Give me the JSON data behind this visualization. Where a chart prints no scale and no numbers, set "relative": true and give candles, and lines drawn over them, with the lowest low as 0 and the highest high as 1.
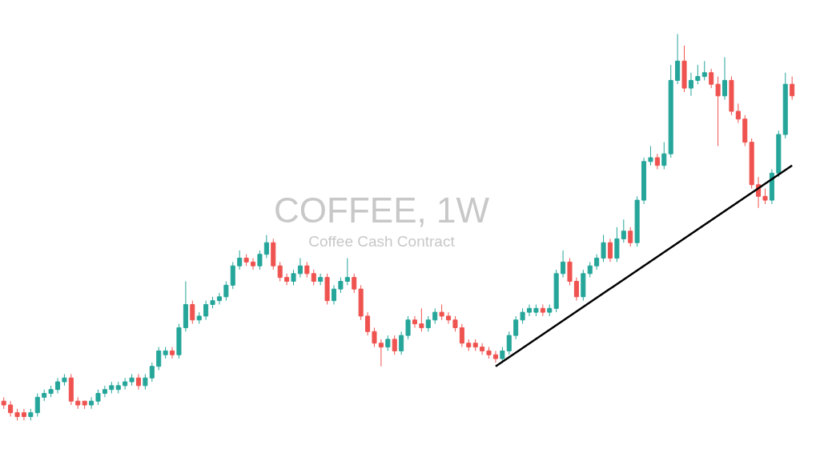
{
  "chart_data": {
    "type": "candlestick",
    "title": "COFFEE, 1W",
    "subtitle": "Coffee Cash Contract",
    "relative": true,
    "categories": [
      null,
      null,
      null,
      null,
      null,
      null,
      null,
      null,
      null,
      null,
      null,
      null,
      null,
      null,
      null,
      null,
      null,
      null,
      null,
      null,
      null,
      null,
      null,
      null,
      null,
      null,
      null,
      null,
      null,
      null,
      null,
      null,
      null,
      null,
      null,
      null,
      null,
      null,
      null,
      null,
      null,
      null,
      null,
      null,
      null,
      null,
      null,
      null,
      null,
      null,
      null,
      null,
      null,
      null,
      null,
      null,
      null,
      null,
      null,
      null,
      null,
      null,
      null,
      null,
      null,
      null,
      null,
      null,
      null,
      null,
      null,
      null,
      null,
      null,
      null,
      null,
      null,
      null,
      null,
      null,
      null,
      null,
      null,
      null,
      null,
      null,
      null,
      null,
      null,
      null,
      null,
      null,
      null,
      null,
      null,
      null,
      null,
      null,
      null,
      null,
      null,
      null,
      null,
      null,
      null,
      null,
      null,
      null,
      null,
      null,
      null,
      null,
      null,
      null,
      null,
      null,
      null,
      null
    ],
    "ohlc": [
      [
        0.05,
        0.06,
        0.03,
        0.04
      ],
      [
        0.04,
        0.05,
        0.01,
        0.02
      ],
      [
        0.02,
        0.03,
        0.0,
        0.01
      ],
      [
        0.02,
        0.03,
        0.0,
        0.01
      ],
      [
        0.01,
        0.03,
        0.0,
        0.02
      ],
      [
        0.02,
        0.07,
        0.01,
        0.06
      ],
      [
        0.06,
        0.08,
        0.05,
        0.07
      ],
      [
        0.07,
        0.09,
        0.06,
        0.08
      ],
      [
        0.08,
        0.11,
        0.07,
        0.1
      ],
      [
        0.1,
        0.12,
        0.09,
        0.11
      ],
      [
        0.11,
        0.12,
        0.04,
        0.05
      ],
      [
        0.05,
        0.06,
        0.03,
        0.04
      ],
      [
        0.05,
        0.05,
        0.03,
        0.04
      ],
      [
        0.04,
        0.06,
        0.03,
        0.05
      ],
      [
        0.05,
        0.08,
        0.04,
        0.07
      ],
      [
        0.07,
        0.09,
        0.06,
        0.08
      ],
      [
        0.08,
        0.1,
        0.07,
        0.09
      ],
      [
        0.08,
        0.1,
        0.07,
        0.09
      ],
      [
        0.09,
        0.11,
        0.08,
        0.1
      ],
      [
        0.1,
        0.12,
        0.09,
        0.11
      ],
      [
        0.11,
        0.12,
        0.08,
        0.09
      ],
      [
        0.09,
        0.12,
        0.08,
        0.11
      ],
      [
        0.11,
        0.15,
        0.1,
        0.14
      ],
      [
        0.14,
        0.19,
        0.13,
        0.18
      ],
      [
        0.17,
        0.19,
        0.16,
        0.18
      ],
      [
        0.18,
        0.19,
        0.16,
        0.17
      ],
      [
        0.17,
        0.25,
        0.16,
        0.24
      ],
      [
        0.24,
        0.36,
        0.23,
        0.3
      ],
      [
        0.3,
        0.31,
        0.25,
        0.26
      ],
      [
        0.26,
        0.28,
        0.25,
        0.27
      ],
      [
        0.27,
        0.31,
        0.26,
        0.3
      ],
      [
        0.3,
        0.32,
        0.29,
        0.31
      ],
      [
        0.31,
        0.33,
        0.3,
        0.32
      ],
      [
        0.32,
        0.36,
        0.31,
        0.35
      ],
      [
        0.35,
        0.41,
        0.34,
        0.4
      ],
      [
        0.4,
        0.44,
        0.39,
        0.42
      ],
      [
        0.42,
        0.43,
        0.4,
        0.41
      ],
      [
        0.41,
        0.42,
        0.39,
        0.4
      ],
      [
        0.4,
        0.44,
        0.39,
        0.43
      ],
      [
        0.43,
        0.48,
        0.42,
        0.46
      ],
      [
        0.46,
        0.47,
        0.39,
        0.4
      ],
      [
        0.4,
        0.41,
        0.36,
        0.37
      ],
      [
        0.37,
        0.38,
        0.35,
        0.36
      ],
      [
        0.36,
        0.39,
        0.35,
        0.38
      ],
      [
        0.38,
        0.42,
        0.37,
        0.4
      ],
      [
        0.4,
        0.41,
        0.37,
        0.38
      ],
      [
        0.38,
        0.39,
        0.35,
        0.36
      ],
      [
        0.36,
        0.38,
        0.35,
        0.37
      ],
      [
        0.37,
        0.38,
        0.3,
        0.31
      ],
      [
        0.31,
        0.35,
        0.3,
        0.34
      ],
      [
        0.34,
        0.37,
        0.33,
        0.36
      ],
      [
        0.36,
        0.42,
        0.35,
        0.37
      ],
      [
        0.37,
        0.38,
        0.33,
        0.34
      ],
      [
        0.34,
        0.35,
        0.26,
        0.27
      ],
      [
        0.27,
        0.28,
        0.22,
        0.23
      ],
      [
        0.23,
        0.24,
        0.19,
        0.2
      ],
      [
        0.2,
        0.21,
        0.14,
        0.19
      ],
      [
        0.19,
        0.22,
        0.18,
        0.21
      ],
      [
        0.21,
        0.22,
        0.17,
        0.18
      ],
      [
        0.18,
        0.23,
        0.17,
        0.22
      ],
      [
        0.22,
        0.27,
        0.21,
        0.26
      ],
      [
        0.26,
        0.27,
        0.24,
        0.25
      ],
      [
        0.25,
        0.29,
        0.23,
        0.24
      ],
      [
        0.24,
        0.27,
        0.23,
        0.26
      ],
      [
        0.26,
        0.29,
        0.25,
        0.28
      ],
      [
        0.28,
        0.3,
        0.26,
        0.27
      ],
      [
        0.27,
        0.28,
        0.25,
        0.26
      ],
      [
        0.26,
        0.27,
        0.23,
        0.24
      ],
      [
        0.24,
        0.25,
        0.19,
        0.2
      ],
      [
        0.2,
        0.21,
        0.18,
        0.19
      ],
      [
        0.2,
        0.21,
        0.18,
        0.19
      ],
      [
        0.19,
        0.2,
        0.17,
        0.18
      ],
      [
        0.18,
        0.19,
        0.16,
        0.17
      ],
      [
        0.17,
        0.18,
        0.15,
        0.16
      ],
      [
        0.16,
        0.19,
        0.15,
        0.18
      ],
      [
        0.18,
        0.23,
        0.17,
        0.22
      ],
      [
        0.22,
        0.27,
        0.21,
        0.26
      ],
      [
        0.26,
        0.29,
        0.25,
        0.28
      ],
      [
        0.28,
        0.3,
        0.27,
        0.29
      ],
      [
        0.28,
        0.3,
        0.27,
        0.29
      ],
      [
        0.29,
        0.3,
        0.27,
        0.28
      ],
      [
        0.28,
        0.3,
        0.27,
        0.29
      ],
      [
        0.29,
        0.39,
        0.28,
        0.38
      ],
      [
        0.38,
        0.44,
        0.37,
        0.41
      ],
      [
        0.41,
        0.42,
        0.35,
        0.36
      ],
      [
        0.36,
        0.37,
        0.31,
        0.32
      ],
      [
        0.32,
        0.39,
        0.31,
        0.38
      ],
      [
        0.38,
        0.41,
        0.37,
        0.4
      ],
      [
        0.4,
        0.43,
        0.39,
        0.42
      ],
      [
        0.42,
        0.48,
        0.41,
        0.46
      ],
      [
        0.46,
        0.47,
        0.41,
        0.42
      ],
      [
        0.42,
        0.5,
        0.41,
        0.47
      ],
      [
        0.47,
        0.52,
        0.46,
        0.49
      ],
      [
        0.49,
        0.5,
        0.45,
        0.46
      ],
      [
        0.46,
        0.58,
        0.45,
        0.57
      ],
      [
        0.57,
        0.68,
        0.56,
        0.67
      ],
      [
        0.67,
        0.71,
        0.66,
        0.68
      ],
      [
        0.68,
        0.69,
        0.65,
        0.66
      ],
      [
        0.66,
        0.72,
        0.65,
        0.69
      ],
      [
        0.69,
        0.92,
        0.68,
        0.88
      ],
      [
        0.88,
        1.0,
        0.87,
        0.93
      ],
      [
        0.93,
        0.97,
        0.85,
        0.86
      ],
      [
        0.86,
        0.9,
        0.84,
        0.88
      ],
      [
        0.88,
        0.92,
        0.87,
        0.89
      ],
      [
        0.89,
        0.93,
        0.88,
        0.9
      ],
      [
        0.9,
        0.91,
        0.86,
        0.87
      ],
      [
        0.87,
        0.89,
        0.71,
        0.84
      ],
      [
        0.84,
        0.94,
        0.83,
        0.88
      ],
      [
        0.88,
        0.89,
        0.79,
        0.8
      ],
      [
        0.8,
        0.82,
        0.77,
        0.78
      ],
      [
        0.78,
        0.79,
        0.71,
        0.72
      ],
      [
        0.72,
        0.73,
        0.6,
        0.61
      ],
      [
        0.61,
        0.63,
        0.55,
        0.58
      ],
      [
        0.58,
        0.6,
        0.56,
        0.57
      ],
      [
        0.57,
        0.65,
        0.56,
        0.64
      ],
      [
        0.64,
        0.75,
        0.63,
        0.74
      ],
      [
        0.74,
        0.9,
        0.73,
        0.87
      ],
      [
        0.87,
        0.89,
        0.83,
        0.84
      ]
    ],
    "series": [
      {
        "type": "line",
        "color": "#000000",
        "values": [
          null,
          null,
          null,
          null,
          null,
          null,
          null,
          null,
          null,
          null,
          null,
          null,
          null,
          null,
          null,
          null,
          null,
          null,
          null,
          null,
          null,
          null,
          null,
          null,
          null,
          null,
          null,
          null,
          null,
          null,
          null,
          null,
          null,
          null,
          null,
          null,
          null,
          null,
          null,
          null,
          null,
          null,
          null,
          null,
          null,
          null,
          null,
          null,
          null,
          null,
          null,
          null,
          null,
          null,
          null,
          null,
          null,
          null,
          null,
          null,
          null,
          null,
          null,
          null,
          null,
          null,
          null,
          null,
          null,
          null,
          null,
          null,
          null,
          0.14,
          null,
          null,
          null,
          null,
          null,
          null,
          null,
          null,
          null,
          null,
          null,
          null,
          null,
          null,
          null,
          null,
          null,
          null,
          null,
          null,
          null,
          null,
          null,
          null,
          null,
          null,
          null,
          null,
          null,
          null,
          null,
          null,
          null,
          null,
          null,
          null,
          null,
          null,
          null,
          null,
          null,
          null,
          null,
          0.66
        ]
      }
    ]
  }
}
